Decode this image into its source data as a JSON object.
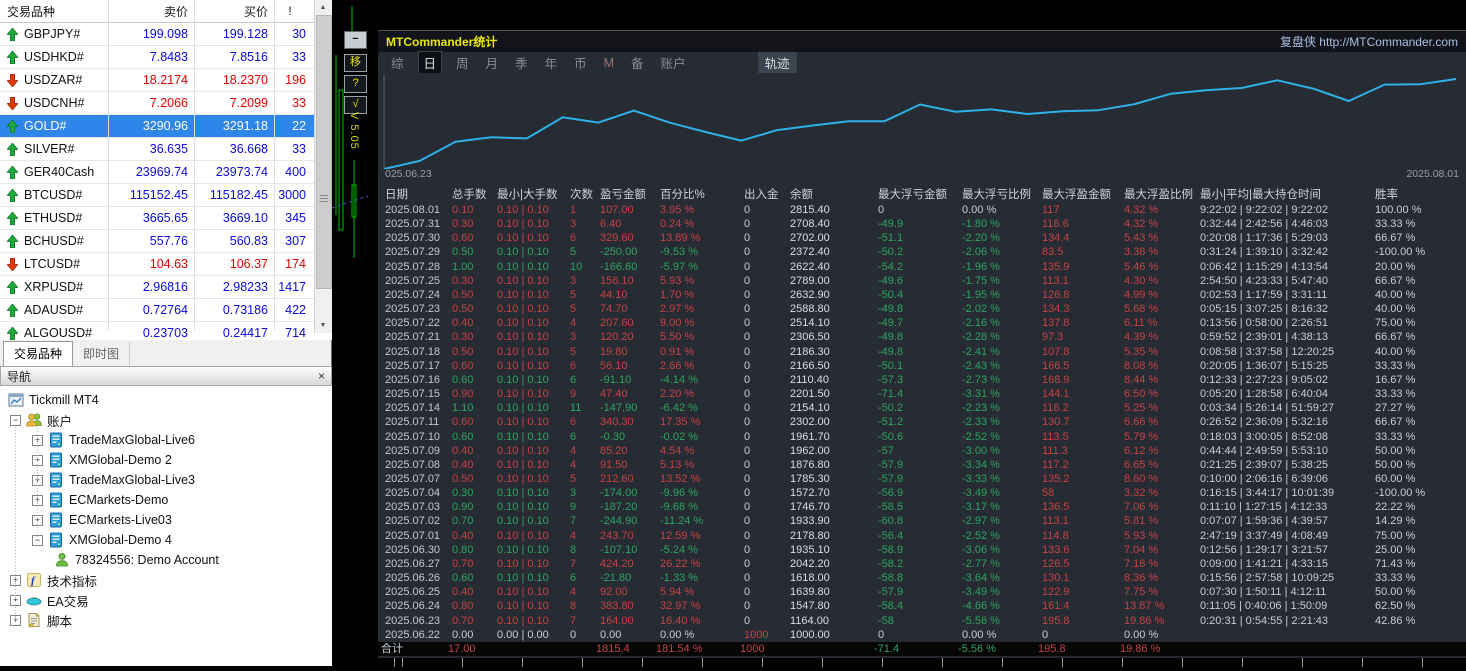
{
  "market_watch": {
    "headers": {
      "symbol": "交易品种",
      "bid": "卖价",
      "ask": "买价",
      "spread": "!"
    },
    "rows": [
      {
        "symbol": "GBPJPY#",
        "dir": "up",
        "bid": "199.098",
        "ask": "199.128",
        "spread": "30",
        "tone": "up",
        "selected": false
      },
      {
        "symbol": "USDHKD#",
        "dir": "up",
        "bid": "7.8483",
        "ask": "7.8516",
        "spread": "33",
        "tone": "up",
        "selected": false
      },
      {
        "symbol": "USDZAR#",
        "dir": "down",
        "bid": "18.2174",
        "ask": "18.2370",
        "spread": "196",
        "tone": "dn",
        "selected": false
      },
      {
        "symbol": "USDCNH#",
        "dir": "down",
        "bid": "7.2066",
        "ask": "7.2099",
        "spread": "33",
        "tone": "dn",
        "selected": false
      },
      {
        "symbol": "GOLD#",
        "dir": "up",
        "bid": "3290.96",
        "ask": "3291.18",
        "spread": "22",
        "tone": "up",
        "selected": true
      },
      {
        "symbol": "SILVER#",
        "dir": "up",
        "bid": "36.635",
        "ask": "36.668",
        "spread": "33",
        "tone": "up",
        "selected": false
      },
      {
        "symbol": "GER40Cash",
        "dir": "up",
        "bid": "23969.74",
        "ask": "23973.74",
        "spread": "400",
        "tone": "up",
        "selected": false
      },
      {
        "symbol": "BTCUSD#",
        "dir": "up",
        "bid": "115152.45",
        "ask": "115182.45",
        "spread": "3000",
        "tone": "up",
        "selected": false
      },
      {
        "symbol": "ETHUSD#",
        "dir": "up",
        "bid": "3665.65",
        "ask": "3669.10",
        "spread": "345",
        "tone": "up",
        "selected": false
      },
      {
        "symbol": "BCHUSD#",
        "dir": "up",
        "bid": "557.76",
        "ask": "560.83",
        "spread": "307",
        "tone": "up",
        "selected": false
      },
      {
        "symbol": "LTCUSD#",
        "dir": "down",
        "bid": "104.63",
        "ask": "106.37",
        "spread": "174",
        "tone": "dn",
        "selected": false
      },
      {
        "symbol": "XRPUSD#",
        "dir": "up",
        "bid": "2.96816",
        "ask": "2.98233",
        "spread": "1417",
        "tone": "up",
        "selected": false
      },
      {
        "symbol": "ADAUSD#",
        "dir": "up",
        "bid": "0.72764",
        "ask": "0.73186",
        "spread": "422",
        "tone": "up",
        "selected": false
      },
      {
        "symbol": "ALGOUSD#",
        "dir": "up",
        "bid": "0.23703",
        "ask": "0.24417",
        "spread": "714",
        "tone": "up",
        "selected": false
      }
    ],
    "tabs": [
      {
        "label": "交易品种",
        "active": true
      },
      {
        "label": "即时图",
        "active": false
      }
    ]
  },
  "navigator": {
    "title": "导航",
    "close_label": "×",
    "items": [
      {
        "label": "Tickmill MT4",
        "icon": "platform",
        "level": 0,
        "expander": ""
      },
      {
        "label": "账户",
        "icon": "accounts",
        "level": 1,
        "expander": "minus"
      },
      {
        "label": "TradeMaxGlobal-Live6",
        "icon": "server",
        "level": 2,
        "expander": "plus"
      },
      {
        "label": "XMGlobal-Demo 2",
        "icon": "server",
        "level": 2,
        "expander": "plus"
      },
      {
        "label": "TradeMaxGlobal-Live3",
        "icon": "server",
        "level": 2,
        "expander": "plus"
      },
      {
        "label": "ECMarkets-Demo",
        "icon": "server",
        "level": 2,
        "expander": "plus"
      },
      {
        "label": "ECMarkets-Live03",
        "icon": "server",
        "level": 2,
        "expander": "plus"
      },
      {
        "label": "XMGlobal-Demo 4",
        "icon": "server",
        "level": 2,
        "expander": "minus"
      },
      {
        "label": "78324556: Demo Account",
        "icon": "account",
        "level": 3,
        "expander": ""
      },
      {
        "label": "技术指标",
        "icon": "indicator",
        "level": 1,
        "expander": "plus"
      },
      {
        "label": "EA交易",
        "icon": "ea",
        "level": 1,
        "expander": "plus"
      },
      {
        "label": "脚本",
        "icon": "script",
        "level": 1,
        "expander": "plus"
      }
    ]
  },
  "chart_strip": {
    "buttons": [
      {
        "label": "−",
        "style": "light",
        "name": "minimize-button"
      },
      {
        "label": "移",
        "style": "dark",
        "name": "move-button"
      },
      {
        "label": "?",
        "style": "dark",
        "name": "help-button"
      },
      {
        "label": "√",
        "style": "dark",
        "name": "confirm-button"
      }
    ],
    "version": "V 5.05"
  },
  "stats_panel": {
    "title": "MTCommander统计",
    "brand": "复盘侠 http://MTCommander.com",
    "tabs": [
      {
        "label": "综"
      },
      {
        "label": "日",
        "active": true
      },
      {
        "label": "周"
      },
      {
        "label": "月"
      },
      {
        "label": "季"
      },
      {
        "label": "年"
      },
      {
        "label": "币"
      },
      {
        "label": "M",
        "muted": true
      },
      {
        "label": "备"
      },
      {
        "label": "账户"
      },
      {
        "label": "轨迹",
        "boxed": true
      }
    ],
    "chart": {
      "type": "line",
      "line_color": "#2fb1e8",
      "start_label": "025.06.23",
      "end_label": "2025.08.01",
      "dates": [
        "2025.06.22",
        "2025.06.23",
        "2025.06.24",
        "2025.06.25",
        "2025.06.26",
        "2025.06.27",
        "2025.06.30",
        "2025.07.01",
        "2025.07.02",
        "2025.07.03",
        "2025.07.04",
        "2025.07.07",
        "2025.07.08",
        "2025.07.09",
        "2025.07.10",
        "2025.07.11",
        "2025.07.14",
        "2025.07.15",
        "2025.07.16",
        "2025.07.17",
        "2025.07.18",
        "2025.07.21",
        "2025.07.22",
        "2025.07.23",
        "2025.07.24",
        "2025.07.25",
        "2025.07.28",
        "2025.07.29",
        "2025.07.30",
        "2025.07.31",
        "2025.08.01"
      ],
      "balances": [
        1000.0,
        1164.0,
        1547.8,
        1639.8,
        1618.0,
        2042.2,
        1935.1,
        2178.8,
        1933.9,
        1746.7,
        1572.7,
        1785.3,
        1876.8,
        1962.0,
        1961.7,
        2302.0,
        2154.1,
        2201.5,
        2110.4,
        2166.5,
        2186.3,
        2306.5,
        2514.1,
        2588.8,
        2632.9,
        2789.0,
        2622.4,
        2372.4,
        2702.0,
        2708.4,
        2815.4
      ]
    },
    "table": {
      "headers": [
        "日期",
        "总手数",
        "最小|大手数",
        "次数",
        "盈亏金额",
        "百分比%",
        "出入金",
        "余额",
        "最大浮亏金额",
        "最大浮亏比例",
        "最大浮盈金额",
        "最大浮盈比例",
        "最小|平均|最大持仓时间",
        "胜率"
      ],
      "rows": [
        [
          "2025.08.01",
          "0.10",
          "0.10 | 0.10",
          "1",
          "107.00",
          "3.95 %",
          "0",
          "2815.40",
          "0",
          "0.00 %",
          "117",
          "4.32 %",
          "9:22:02 | 9:22:02 | 9:22:02",
          "100.00 %"
        ],
        [
          "2025.07.31",
          "0.30",
          "0.10 | 0.10",
          "3",
          "6.40",
          "0.24 %",
          "0",
          "2708.40",
          "-49.9",
          "-1.80 %",
          "116.6",
          "4.32 %",
          "0:32:44 | 2:42:56 | 4:46:03",
          "33.33 %"
        ],
        [
          "2025.07.30",
          "0.60",
          "0.10 | 0.10",
          "6",
          "329.60",
          "13.89 %",
          "0",
          "2702.00",
          "-51.1",
          "-2.20 %",
          "134.4",
          "5.43 %",
          "0:20:08 | 1:17:36 | 5:29:03",
          "66.67 %"
        ],
        [
          "2025.07.29",
          "0.50",
          "0.10 | 0.10",
          "5",
          "-250.00",
          "-9.53 %",
          "0",
          "2372.40",
          "-50.2",
          "-2.06 %",
          "83.5",
          "3.38 %",
          "0:31:24 | 1:39:10 | 3:32:42",
          "-100.00 %"
        ],
        [
          "2025.07.28",
          "1.00",
          "0.10 | 0.10",
          "10",
          "-166.60",
          "-5.97 %",
          "0",
          "2622.40",
          "-54.2",
          "-1.96 %",
          "135.9",
          "5.46 %",
          "0:06:42 | 1:15:29 | 4:13:54",
          "20.00 %"
        ],
        [
          "2025.07.25",
          "0.30",
          "0.10 | 0.10",
          "3",
          "156.10",
          "5.93 %",
          "0",
          "2789.00",
          "-49.6",
          "-1.75 %",
          "113.1",
          "4.30 %",
          "2:54:50 | 4:23:33 | 5:47:40",
          "66.67 %"
        ],
        [
          "2025.07.24",
          "0.50",
          "0.10 | 0.10",
          "5",
          "44.10",
          "1.70 %",
          "0",
          "2632.90",
          "-50.4",
          "-1.95 %",
          "126.8",
          "4.99 %",
          "0:02:53 | 1:17:59 | 3:31:11",
          "40.00 %"
        ],
        [
          "2025.07.23",
          "0.50",
          "0.10 | 0.10",
          "5",
          "74.70",
          "2.97 %",
          "0",
          "2588.80",
          "-49.8",
          "-2.02 %",
          "134.3",
          "5.68 %",
          "0:05:15 | 3:07:25 | 8:16:32",
          "40.00 %"
        ],
        [
          "2025.07.22",
          "0.40",
          "0.10 | 0.10",
          "4",
          "207.60",
          "9.00 %",
          "0",
          "2514.10",
          "-49.7",
          "-2.16 %",
          "137.8",
          "6.11 %",
          "0:13:56 | 0:58:00 | 2:26:51",
          "75.00 %"
        ],
        [
          "2025.07.21",
          "0.30",
          "0.10 | 0.10",
          "3",
          "120.20",
          "5.50 %",
          "0",
          "2306.50",
          "-49.8",
          "-2.28 %",
          "97.3",
          "4.39 %",
          "0:59:52 | 2:39:01 | 4:38:13",
          "66.67 %"
        ],
        [
          "2025.07.18",
          "0.50",
          "0.10 | 0.10",
          "5",
          "19.80",
          "0.91 %",
          "0",
          "2186.30",
          "-49.8",
          "-2.41 %",
          "107.8",
          "5.35 %",
          "0:08:58 | 3:37:58 | 12:20:25",
          "40.00 %"
        ],
        [
          "2025.07.17",
          "0.60",
          "0.10 | 0.10",
          "6",
          "56.10",
          "2.66 %",
          "0",
          "2166.50",
          "-50.1",
          "-2.43 %",
          "166.5",
          "8.08 %",
          "0:20:05 | 1:36:07 | 5:15:25",
          "33.33 %"
        ],
        [
          "2025.07.16",
          "0.60",
          "0.10 | 0.10",
          "6",
          "-91.10",
          "-4.14 %",
          "0",
          "2110.40",
          "-57.3",
          "-2.73 %",
          "168.9",
          "8.44 %",
          "0:12:33 | 2:27:23 | 9:05:02",
          "16.67 %"
        ],
        [
          "2025.07.15",
          "0.90",
          "0.10 | 0.10",
          "9",
          "47.40",
          "2.20 %",
          "0",
          "2201.50",
          "-71.4",
          "-3.31 %",
          "144.1",
          "6.50 %",
          "0:05:20 | 1:28:58 | 6:40:04",
          "33.33 %"
        ],
        [
          "2025.07.14",
          "1.10",
          "0.10 | 0.10",
          "11",
          "-147.90",
          "-6.42 %",
          "0",
          "2154.10",
          "-50.2",
          "-2.23 %",
          "116.2",
          "5.25 %",
          "0:03:34 | 5:26:14 | 51:59:27",
          "27.27 %"
        ],
        [
          "2025.07.11",
          "0.60",
          "0.10 | 0.10",
          "6",
          "340.30",
          "17.35 %",
          "0",
          "2302.00",
          "-51.2",
          "-2.33 %",
          "130.7",
          "6.66 %",
          "0:26:52 | 2:36:09 | 5:32:16",
          "66.67 %"
        ],
        [
          "2025.07.10",
          "0.60",
          "0.10 | 0.10",
          "6",
          "-0.30",
          "-0.02 %",
          "0",
          "1961.70",
          "-50.6",
          "-2.52 %",
          "113.5",
          "5.79 %",
          "0:18:03 | 3:00:05 | 8:52:08",
          "33.33 %"
        ],
        [
          "2025.07.09",
          "0.40",
          "0.10 | 0.10",
          "4",
          "85.20",
          "4.54 %",
          "0",
          "1962.00",
          "-57",
          "-3.00 %",
          "111.3",
          "6.12 %",
          "0:44:44 | 2:49:59 | 5:53:10",
          "50.00 %"
        ],
        [
          "2025.07.08",
          "0.40",
          "0.10 | 0.10",
          "4",
          "91.50",
          "5.13 %",
          "0",
          "1876.80",
          "-57.9",
          "-3.34 %",
          "117.2",
          "6.65 %",
          "0:21:25 | 2:39:07 | 5:38:25",
          "50.00 %"
        ],
        [
          "2025.07.07",
          "0.50",
          "0.10 | 0.10",
          "5",
          "212.60",
          "13.52 %",
          "0",
          "1785.30",
          "-57.9",
          "-3.33 %",
          "135.2",
          "8.60 %",
          "0:10:00 | 2:06:16 | 6:39:06",
          "60.00 %"
        ],
        [
          "2025.07.04",
          "0.30",
          "0.10 | 0.10",
          "3",
          "-174.00",
          "-9.96 %",
          "0",
          "1572.70",
          "-56.9",
          "-3.49 %",
          "58",
          "3.32 %",
          "0:16:15 | 3:44:17 | 10:01:39",
          "-100.00 %"
        ],
        [
          "2025.07.03",
          "0.90",
          "0.10 | 0.10",
          "9",
          "-187.20",
          "-9.68 %",
          "0",
          "1746.70",
          "-58.5",
          "-3.17 %",
          "136.5",
          "7.06 %",
          "0:11:10 | 1:27:15 | 4:12:33",
          "22.22 %"
        ],
        [
          "2025.07.02",
          "0.70",
          "0.10 | 0.10",
          "7",
          "-244.90",
          "-11.24 %",
          "0",
          "1933.90",
          "-60.8",
          "-2.97 %",
          "113.1",
          "5.81 %",
          "0:07:07 | 1:59:36 | 4:39:57",
          "14.29 %"
        ],
        [
          "2025.07.01",
          "0.40",
          "0.10 | 0.10",
          "4",
          "243.70",
          "12.59 %",
          "0",
          "2178.80",
          "-56.4",
          "-2.52 %",
          "114.8",
          "5.93 %",
          "2:47:19 | 3:37:49 | 4:08:49",
          "75.00 %"
        ],
        [
          "2025.06.30",
          "0.80",
          "0.10 | 0.10",
          "8",
          "-107.10",
          "-5.24 %",
          "0",
          "1935.10",
          "-58.9",
          "-3.06 %",
          "133.6",
          "7.04 %",
          "0:12:56 | 1:29:17 | 3:21:57",
          "25.00 %"
        ],
        [
          "2025.06.27",
          "0.70",
          "0.10 | 0.10",
          "7",
          "424.20",
          "26.22 %",
          "0",
          "2042.20",
          "-58.2",
          "-2.77 %",
          "126.5",
          "7.18 %",
          "0:09:00 | 1:41:21 | 4:33:15",
          "71.43 %"
        ],
        [
          "2025.06.26",
          "0.60",
          "0.10 | 0.10",
          "6",
          "-21.80",
          "-1.33 %",
          "0",
          "1618.00",
          "-58.8",
          "-3.64 %",
          "130.1",
          "8.36 %",
          "0:15:56 | 2:57:58 | 10:09:25",
          "33.33 %"
        ],
        [
          "2025.06.25",
          "0.40",
          "0.10 | 0.10",
          "4",
          "92.00",
          "5.94 %",
          "0",
          "1639.80",
          "-57.9",
          "-3.49 %",
          "122.9",
          "7.75 %",
          "0:07:30 | 1:50:11 | 4:12:11",
          "50.00 %"
        ],
        [
          "2025.06.24",
          "0.80",
          "0.10 | 0.10",
          "8",
          "383.80",
          "32.97 %",
          "0",
          "1547.80",
          "-58.4",
          "-4.66 %",
          "161.4",
          "13.87 %",
          "0:11:05 | 0:40:06 | 1:50:09",
          "62.50 %"
        ],
        [
          "2025.06.23",
          "0.70",
          "0.10 | 0.10",
          "7",
          "164.00",
          "16.40 %",
          "0",
          "1164.00",
          "-58",
          "-5.56 %",
          "195.8",
          "19.86 %",
          "0:20:31 | 0:54:55 | 2:21:43",
          "42.86 %"
        ],
        [
          "2025.06.22",
          "0.00",
          "0.00 | 0.00",
          "0",
          "0.00",
          "0.00 %",
          "1000",
          "1000.00",
          "0",
          "0.00 %",
          "0",
          "0.00 %",
          "",
          ""
        ]
      ],
      "total_row": [
        "合计",
        "17.00",
        "",
        "",
        "1815.4",
        "181.54 %",
        "1000",
        "",
        "-71.4",
        "-5.56 %",
        "195.8",
        "19.86 %",
        "",
        ""
      ]
    }
  }
}
